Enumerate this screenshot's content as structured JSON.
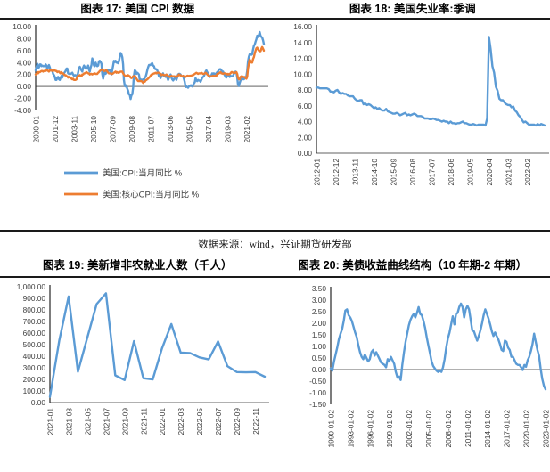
{
  "source_note": "数据来源：wind，兴证期货研发部",
  "chart_data": [
    {
      "id": "cpi",
      "type": "line",
      "title": "图表 17: 美国 CPI 数据",
      "ylim": [
        -4,
        10
      ],
      "yticks": [
        "10.00",
        "8.00",
        "6.00",
        "4.00",
        "2.00",
        "0.00",
        "-2.00",
        "-4.00"
      ],
      "xticks": [
        "2000-01",
        "2001-12",
        "2003-11",
        "2005-10",
        "2007-09",
        "2009-08",
        "2011-07",
        "2013-06",
        "2015-05",
        "2017-04",
        "2019-03",
        "2021-02"
      ],
      "xtick_step": 23,
      "baseline": 0,
      "legend": true,
      "legend_position": "bottom",
      "grid": false,
      "series": [
        {
          "name": "美国:CPI:当月同比 %",
          "color": "#5B9BD5",
          "values": [
            2.7,
            3.2,
            3.8,
            3.1,
            3.2,
            3.7,
            3.7,
            3.4,
            3.5,
            3.4,
            3.4,
            3.4,
            3.7,
            3.5,
            2.9,
            3.3,
            3.6,
            3.2,
            2.7,
            2.7,
            2.6,
            2.1,
            1.9,
            1.6,
            1.1,
            1.1,
            1.5,
            1.6,
            1.2,
            1.1,
            1.5,
            1.8,
            1.5,
            2.0,
            2.2,
            2.4,
            2.6,
            3.0,
            3.0,
            2.2,
            2.1,
            2.1,
            2.1,
            2.2,
            2.3,
            2.0,
            1.8,
            1.9,
            1.9,
            1.7,
            1.7,
            2.3,
            3.1,
            3.3,
            3.0,
            2.7,
            2.5,
            3.2,
            3.5,
            3.3,
            3.0,
            3.0,
            3.1,
            3.5,
            2.8,
            2.5,
            3.2,
            3.6,
            4.7,
            4.3,
            3.5,
            3.4,
            4.0,
            3.6,
            3.4,
            3.5,
            4.2,
            4.3,
            4.1,
            3.8,
            2.1,
            1.3,
            2.0,
            2.5,
            2.1,
            2.4,
            2.8,
            2.6,
            2.7,
            2.7,
            2.4,
            2.0,
            2.8,
            3.5,
            4.3,
            4.1,
            4.3,
            4.0,
            4.0,
            3.9,
            4.2,
            5.0,
            5.6,
            5.4,
            4.9,
            3.7,
            1.1,
            0.1,
            0.0,
            0.2,
            -0.4,
            -0.7,
            -1.3,
            -1.4,
            -2.1,
            -1.5,
            -1.3,
            -0.2,
            1.8,
            2.7,
            2.6,
            2.1,
            2.3,
            2.2,
            2.0,
            1.1,
            1.2,
            1.1,
            1.1,
            1.2,
            1.1,
            1.5,
            1.6,
            2.1,
            2.7,
            3.2,
            3.6,
            3.6,
            3.6,
            3.8,
            3.9,
            3.5,
            3.4,
            3.0,
            2.9,
            2.9,
            2.7,
            2.3,
            1.7,
            1.7,
            1.4,
            1.7,
            2.0,
            2.2,
            1.8,
            1.7,
            1.6,
            2.0,
            1.5,
            1.1,
            1.4,
            1.8,
            2.0,
            1.5,
            1.2,
            1.0,
            1.2,
            1.5,
            1.6,
            1.1,
            1.5,
            2.0,
            2.1,
            2.1,
            2.0,
            1.7,
            1.7,
            1.7,
            1.3,
            0.8,
            -0.1,
            0.0,
            -0.1,
            -0.2,
            0.0,
            0.1,
            0.2,
            0.2,
            0.0,
            0.2,
            0.5,
            0.7,
            1.4,
            1.0,
            0.9,
            1.1,
            1.0,
            1.0,
            0.8,
            1.1,
            1.5,
            1.6,
            1.7,
            2.1,
            2.5,
            2.7,
            2.4,
            2.2,
            1.9,
            1.6,
            1.7,
            1.9,
            2.2,
            2.0,
            2.2,
            2.1,
            2.1,
            2.2,
            2.4,
            2.5,
            2.8,
            2.9,
            2.9,
            2.7,
            2.3,
            2.5,
            2.2,
            1.9,
            1.6,
            1.5,
            1.9,
            2.0,
            1.8,
            1.6,
            1.8,
            1.7,
            1.7,
            1.8,
            2.1,
            2.3,
            2.5,
            2.3,
            1.5,
            0.3,
            0.1,
            0.6,
            1.0,
            1.3,
            1.4,
            1.2,
            1.2,
            1.4,
            1.4,
            1.7,
            2.6,
            4.2,
            5.0,
            5.4,
            5.4,
            5.3,
            5.4,
            6.2,
            6.8,
            7.0,
            7.5,
            7.9,
            8.5,
            8.3,
            8.6,
            9.1,
            8.5,
            8.3,
            8.2,
            7.7,
            7.1
          ]
        },
        {
          "name": "美国:核心CPI:当月同比 %",
          "color": "#ED7D31",
          "values": [
            2.0,
            2.1,
            2.4,
            2.2,
            2.4,
            2.4,
            2.5,
            2.6,
            2.6,
            2.5,
            2.6,
            2.6,
            2.6,
            2.7,
            2.7,
            2.6,
            2.5,
            2.7,
            2.7,
            2.7,
            2.6,
            2.6,
            2.8,
            2.7,
            2.6,
            2.6,
            2.4,
            2.5,
            2.5,
            2.3,
            2.2,
            2.4,
            2.2,
            2.2,
            2.0,
            1.9,
            1.9,
            1.7,
            1.7,
            1.5,
            1.6,
            1.5,
            1.5,
            1.3,
            1.2,
            1.3,
            1.1,
            1.1,
            1.1,
            1.2,
            1.6,
            1.8,
            1.7,
            1.9,
            1.8,
            1.7,
            2.0,
            2.0,
            2.2,
            2.2,
            2.3,
            2.4,
            2.3,
            2.2,
            2.2,
            2.0,
            2.1,
            2.1,
            2.0,
            2.1,
            2.1,
            2.2,
            2.1,
            2.1,
            2.1,
            2.3,
            2.4,
            2.6,
            2.7,
            2.8,
            2.9,
            2.7,
            2.6,
            2.6,
            2.7,
            2.7,
            2.5,
            2.3,
            2.2,
            2.2,
            2.2,
            2.1,
            2.1,
            2.2,
            2.3,
            2.4,
            2.5,
            2.3,
            2.4,
            2.3,
            2.3,
            2.4,
            2.5,
            2.5,
            2.5,
            2.2,
            2.0,
            1.8,
            1.7,
            1.8,
            1.8,
            1.9,
            1.8,
            1.7,
            1.5,
            1.4,
            1.5,
            1.7,
            1.7,
            1.8,
            1.6,
            1.3,
            1.1,
            0.9,
            0.9,
            0.9,
            0.9,
            0.9,
            0.8,
            0.6,
            0.8,
            0.8,
            1.0,
            1.1,
            1.2,
            1.3,
            1.5,
            1.6,
            1.8,
            2.0,
            2.0,
            2.1,
            2.2,
            2.2,
            2.3,
            2.2,
            2.3,
            2.3,
            2.3,
            2.2,
            2.1,
            1.9,
            2.0,
            2.0,
            1.9,
            1.9,
            1.9,
            2.0,
            1.9,
            1.7,
            1.7,
            1.6,
            1.7,
            1.8,
            1.7,
            1.7,
            1.7,
            1.7,
            1.6,
            1.6,
            1.7,
            1.8,
            2.0,
            1.9,
            1.9,
            1.7,
            1.7,
            1.8,
            1.7,
            1.6,
            1.6,
            1.7,
            1.8,
            1.8,
            1.7,
            1.8,
            1.8,
            1.8,
            1.9,
            1.9,
            2.0,
            2.1,
            2.2,
            2.3,
            2.2,
            2.1,
            2.2,
            2.2,
            2.2,
            2.3,
            2.2,
            2.1,
            2.1,
            2.2,
            2.3,
            2.2,
            2.0,
            1.9,
            1.7,
            1.7,
            1.7,
            1.7,
            1.7,
            1.8,
            1.7,
            1.8,
            1.8,
            1.8,
            2.1,
            2.1,
            2.2,
            2.3,
            2.4,
            2.2,
            2.2,
            2.1,
            2.2,
            2.2,
            2.2,
            2.1,
            2.0,
            2.1,
            2.0,
            2.1,
            2.2,
            2.4,
            2.4,
            2.3,
            2.3,
            2.3,
            2.3,
            2.4,
            2.1,
            1.4,
            1.2,
            1.2,
            1.6,
            1.7,
            1.7,
            1.6,
            1.6,
            1.6,
            1.4,
            1.3,
            1.6,
            3.0,
            3.8,
            4.5,
            4.3,
            4.0,
            4.0,
            4.6,
            4.9,
            5.5,
            6.0,
            6.4,
            6.5,
            6.2,
            6.0,
            5.9,
            5.9,
            6.3,
            6.6,
            6.3,
            6.0
          ]
        }
      ]
    },
    {
      "id": "unemp",
      "type": "line",
      "title": "图表 18: 美国失业率:季调",
      "ylim": [
        0,
        16
      ],
      "yticks": [
        "16.00",
        "14.00",
        "12.00",
        "10.00",
        "8.00",
        "6.00",
        "4.00",
        "2.00",
        "0.00"
      ],
      "xticks": [
        "2012-01",
        "2012-12",
        "2013-11",
        "2014-10",
        "2015-09",
        "2016-08",
        "2017-07",
        "2018-06",
        "2019-05",
        "2020-04",
        "2021-03",
        "2022-02"
      ],
      "xtick_step": 11,
      "baseline": 0,
      "legend": false,
      "grid": false,
      "series": [
        {
          "name": "美国失业率:季调",
          "color": "#5B9BD5",
          "values": [
            8.3,
            8.3,
            8.2,
            8.2,
            8.2,
            8.2,
            8.2,
            8.1,
            7.8,
            7.8,
            7.7,
            7.9,
            8.0,
            7.7,
            7.5,
            7.6,
            7.5,
            7.5,
            7.3,
            7.2,
            7.2,
            7.2,
            6.9,
            6.7,
            6.6,
            6.7,
            6.7,
            6.2,
            6.3,
            6.1,
            6.2,
            6.1,
            5.9,
            5.7,
            5.8,
            5.6,
            5.7,
            5.5,
            5.4,
            5.4,
            5.6,
            5.3,
            5.2,
            5.1,
            5.0,
            5.0,
            5.1,
            5.0,
            4.8,
            4.9,
            5.0,
            5.1,
            4.8,
            4.9,
            4.8,
            4.9,
            5.0,
            4.9,
            4.7,
            4.7,
            4.7,
            4.6,
            4.4,
            4.4,
            4.4,
            4.3,
            4.3,
            4.4,
            4.3,
            4.2,
            4.2,
            4.1,
            4.0,
            4.1,
            4.0,
            4.0,
            3.8,
            4.0,
            3.8,
            3.8,
            3.7,
            3.8,
            3.8,
            3.9,
            4.0,
            3.8,
            3.8,
            3.7,
            3.6,
            3.6,
            3.7,
            3.6,
            3.5,
            3.6,
            3.6,
            3.6,
            3.6,
            3.5,
            4.4,
            14.7,
            13.2,
            11.0,
            10.2,
            8.4,
            7.9,
            6.9,
            6.7,
            6.7,
            6.4,
            6.2,
            6.1,
            6.1,
            5.8,
            5.9,
            5.4,
            5.2,
            4.8,
            4.6,
            4.2,
            3.9,
            4.0,
            3.8,
            3.6,
            3.6,
            3.6,
            3.6,
            3.5,
            3.7,
            3.5,
            3.7,
            3.6,
            3.5
          ]
        }
      ]
    },
    {
      "id": "nfp",
      "type": "line",
      "title": "图表 19: 美新增非农就业人数（千人）",
      "ylim": [
        0,
        1000
      ],
      "yticks": [
        "1,000.00",
        "900.00",
        "800.00",
        "700.00",
        "600.00",
        "500.00",
        "400.00",
        "300.00",
        "200.00",
        "100.00",
        "0.00"
      ],
      "xticks": [
        "2021-01",
        "2021-03",
        "2021-05",
        "2021-07",
        "2021-09",
        "2021-11",
        "2022-01",
        "2022-03",
        "2022-05",
        "2022-07",
        "2022-09",
        "2022-11"
      ],
      "xtick_step": 2,
      "baseline": 0,
      "legend": false,
      "grid": false,
      "series": [
        {
          "name": "美新增非农就业人数（千人）",
          "color": "#5B9BD5",
          "values": [
            49,
            536,
            916,
            266,
            559,
            850,
            943,
            235,
            194,
            531,
            210,
            199,
            467,
            678,
            431,
            428,
            390,
            372,
            528,
            315,
            263,
            261,
            263,
            223
          ]
        }
      ]
    },
    {
      "id": "spread",
      "type": "line",
      "title": "图表 20: 美债收益曲线结构（10 年期-2 年期）",
      "ylim": [
        -1.5,
        3.5
      ],
      "yticks": [
        "3.50",
        "3.00",
        "2.50",
        "2.00",
        "1.50",
        "1.00",
        "0.50",
        "0.00",
        "-0.50",
        "-1.00",
        "-1.50"
      ],
      "xticks": [
        "1990-01-02",
        "1993-01-02",
        "1996-01-02",
        "1999-01-02",
        "2002-01-02",
        "2005-01-02",
        "2008-01-02",
        "2011-01-02",
        "2014-01-02",
        "2017-01-02",
        "2020-01-02",
        "2023-01-02"
      ],
      "xtick_step": 12,
      "baseline": 0,
      "legend": false,
      "grid": false,
      "series": [
        {
          "name": "美债10年期-2年期利差",
          "color": "#5B9BD5",
          "values": [
            0.05,
            -0.05,
            0.35,
            0.65,
            0.95,
            1.3,
            1.55,
            1.75,
            2.1,
            2.55,
            2.6,
            2.35,
            2.25,
            2.1,
            1.85,
            1.6,
            1.4,
            1.05,
            0.75,
            0.55,
            0.45,
            0.65,
            0.5,
            0.35,
            0.45,
            0.75,
            0.85,
            0.6,
            0.75,
            0.6,
            0.45,
            0.3,
            0.25,
            0.2,
            0.1,
            0.45,
            0.35,
            0.55,
            0.4,
            0.25,
            -0.1,
            -0.35,
            -0.3,
            -0.45,
            0.2,
            0.75,
            1.2,
            1.55,
            1.9,
            2.15,
            2.3,
            2.4,
            2.25,
            2.45,
            2.7,
            2.4,
            2.35,
            2.1,
            1.8,
            1.4,
            1.05,
            0.7,
            0.35,
            0.15,
            0.05,
            -0.05,
            -0.1,
            -0.05,
            -0.1,
            0.1,
            0.45,
            0.95,
            1.35,
            1.6,
            1.95,
            2.3,
            1.95,
            2.4,
            2.45,
            2.7,
            2.85,
            2.7,
            2.25,
            2.6,
            2.75,
            2.6,
            2.15,
            1.7,
            1.65,
            1.45,
            1.25,
            1.45,
            1.7,
            2.0,
            2.35,
            2.6,
            2.4,
            2.2,
            1.95,
            1.65,
            1.45,
            1.6,
            1.45,
            1.3,
            1.1,
            0.85,
            0.8,
            1.25,
            1.2,
            0.95,
            0.85,
            0.55,
            0.55,
            0.4,
            0.25,
            0.2,
            0.2,
            0.1,
            -0.02,
            0.2,
            0.12,
            0.4,
            0.55,
            0.8,
            1.1,
            1.55,
            1.2,
            0.85,
            0.6,
            0.05,
            -0.4,
            -0.7,
            -0.85
          ]
        }
      ]
    }
  ]
}
